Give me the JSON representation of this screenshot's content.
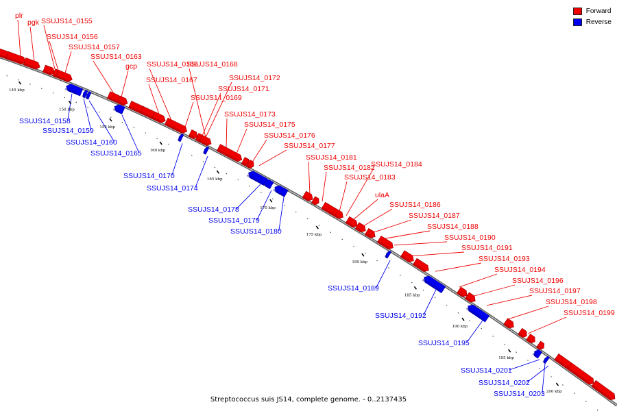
{
  "caption": "Streptococcus suis JS14, complete genome. - 0..2137435",
  "legend": [
    {
      "label": "Forward",
      "color": "#ee0000"
    },
    {
      "label": "Reverse",
      "color": "#0000ee"
    }
  ],
  "colors": {
    "forward": "#ee0000",
    "reverse": "#0000ee",
    "backbone": "#999999"
  },
  "ticks": [
    "145 kbp",
    "150 kbp",
    "155 kbp",
    "160 kbp",
    "165 kbp",
    "170 kbp",
    "175 kbp",
    "180 kbp",
    "185 kbp",
    "190 kbp",
    "195 kbp",
    "200 kbp"
  ],
  "forward_labels": [
    "plr",
    "pgk",
    "SSUJS14_0155",
    "SSUJS14_0156",
    "SSUJS14_0157",
    "SSUJS14_0163",
    "gcp",
    "SSUJS14_0166",
    "SSUJS14_0168",
    "SSUJS14_0167",
    "SSUJS14_0172",
    "SSUJS14_0171",
    "SSUJS14_0169",
    "SSUJS14_0173",
    "SSUJS14_0175",
    "SSUJS14_0176",
    "SSUJS14_0177",
    "SSUJS14_0181",
    "SSUJS14_0182",
    "SSUJS14_0184",
    "SSUJS14_0183",
    "ulaA",
    "SSUJS14_0186",
    "SSUJS14_0187",
    "SSUJS14_0188",
    "SSUJS14_0190",
    "SSUJS14_0191",
    "SSUJS14_0193",
    "SSUJS14_0194",
    "SSUJS14_0196",
    "SSUJS14_0197",
    "SSUJS14_0198",
    "SSUJS14_0199"
  ],
  "reverse_labels": [
    "SSUJS14_0158",
    "SSUJS14_0159",
    "SSUJS14_0160",
    "SSUJS14_0165",
    "SSUJS14_0170",
    "SSUJS14_0174",
    "SSUJS14_0178",
    "SSUJS14_0179",
    "SSUJS14_0180",
    "SSUJS14_0189",
    "SSUJS14_0192",
    "SSUJS14_0195",
    "SSUJS14_0201",
    "SSUJS14_0202",
    "SSUJS14_0203"
  ]
}
